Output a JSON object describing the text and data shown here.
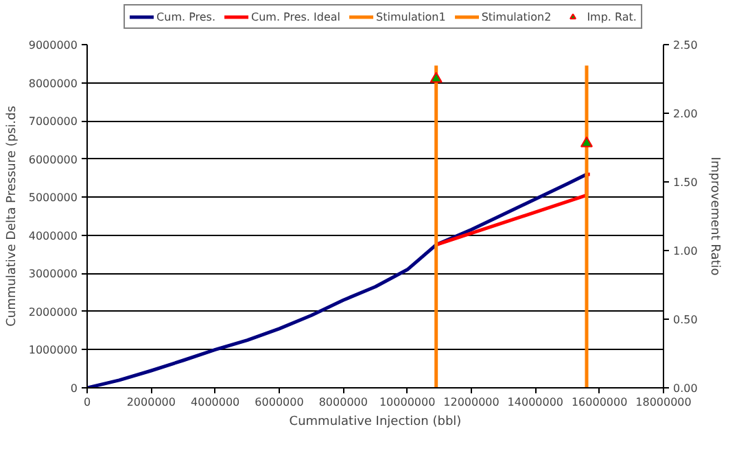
{
  "chart_data": {
    "type": "line",
    "xlabel": "Cummulative Injection (bbl)",
    "ylabel": "Cummulative Delta Pressure (psi.ds",
    "y2label": "Improvement Ratio",
    "xlim": [
      0,
      18000000
    ],
    "xticks": [
      0,
      2000000,
      4000000,
      6000000,
      8000000,
      10000000,
      12000000,
      14000000,
      16000000,
      18000000
    ],
    "ylim": [
      0,
      9000000
    ],
    "yticks": [
      0,
      1000000,
      2000000,
      3000000,
      4000000,
      5000000,
      6000000,
      7000000,
      8000000,
      9000000
    ],
    "y2lim": [
      0,
      2.5
    ],
    "y2ticks": [
      {
        "value": 0,
        "label": "0.00"
      },
      {
        "value": 0.5,
        "label": "0.50"
      },
      {
        "value": 1,
        "label": "1.00"
      },
      {
        "value": 1.5,
        "label": "1.50"
      },
      {
        "value": 2,
        "label": "2.00"
      },
      {
        "value": 2.5,
        "label": "2.50"
      }
    ],
    "grid": "y",
    "legend": "top",
    "marker": "none",
    "line_style": "solid",
    "series": [
      {
        "name": "Cum. Pres.",
        "color": "#000080",
        "x": [
          0,
          1000000,
          2000000,
          3000000,
          4000000,
          5000000,
          6000000,
          7000000,
          8000000,
          9000000,
          10000000,
          10900000,
          12000000,
          13000000,
          14000000,
          15000000,
          15600000
        ],
        "values": [
          0,
          200000,
          450000,
          720000,
          1000000,
          1250000,
          1550000,
          1900000,
          2300000,
          2650000,
          3100000,
          3750000,
          4150000,
          4550000,
          4950000,
          5350000,
          5600000
        ]
      },
      {
        "name": "Cum. Pres. Ideal",
        "color": "#ff0000",
        "x": [
          10900000,
          15600000,
          15600000,
          15700000
        ],
        "values": [
          3750000,
          5050000,
          5600000,
          5600000
        ]
      },
      {
        "name": "Stimulation1",
        "color": "#ff8000",
        "x": [
          10900000,
          10900000
        ],
        "values": [
          0,
          8450000
        ]
      },
      {
        "name": "Stimulation2",
        "color": "#ff8000",
        "x": [
          15600000,
          15600000
        ],
        "values": [
          0,
          8450000
        ]
      },
      {
        "name": "Imp. Rat.",
        "type": "scatter",
        "marker": "triangle",
        "color": "#00a000",
        "axis": "y2",
        "x": [
          10900000,
          15600000
        ],
        "values": [
          2.25,
          1.78
        ]
      }
    ]
  }
}
